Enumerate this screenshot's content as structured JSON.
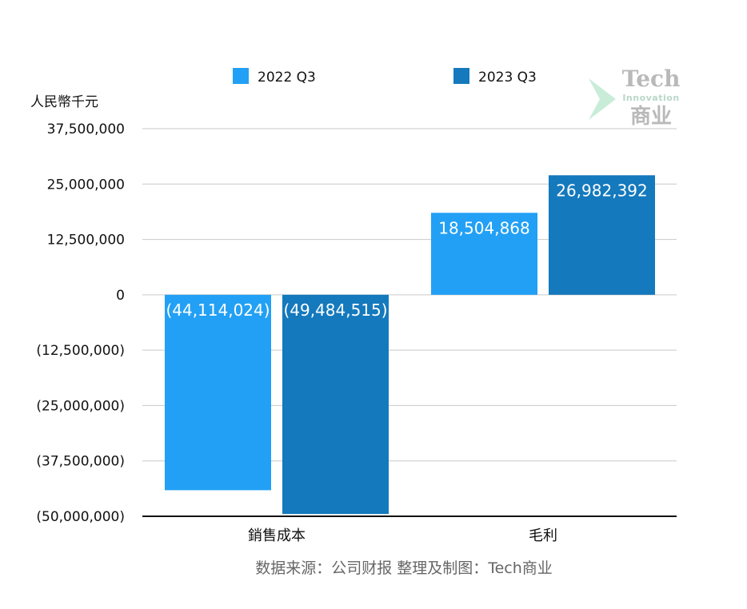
{
  "chart_data": {
    "type": "bar",
    "categories": [
      "銷售成本",
      "毛利"
    ],
    "series": [
      {
        "name": "2022 Q3",
        "color": "#22a0f5",
        "values": [
          -44114024,
          18504868
        ],
        "labels": [
          "(44,114,024)",
          "18,504,868"
        ]
      },
      {
        "name": "2023 Q3",
        "color": "#1479bd",
        "values": [
          -49484515,
          26982392
        ],
        "labels": [
          "(49,484,515)",
          "26,982,392"
        ]
      }
    ],
    "ylabel": "人民幣千元",
    "ylim": [
      -50000000,
      37500000
    ],
    "yticks": [
      37500000,
      25000000,
      12500000,
      0,
      -12500000,
      -25000000,
      -37500000,
      -50000000
    ],
    "ytick_labels": [
      "37,500,000",
      "25,000,000",
      "12,500,000",
      "0",
      "(12,500,000)",
      "(25,000,000)",
      "(37,500,000)",
      "(50,000,000)"
    ],
    "grid": true,
    "legend_position": "top",
    "source_note": "数据来源：公司财报 整理及制图：Tech商业"
  },
  "watermark": {
    "title": "Tech",
    "subtitle": "Innovation",
    "chinese": "商业"
  }
}
